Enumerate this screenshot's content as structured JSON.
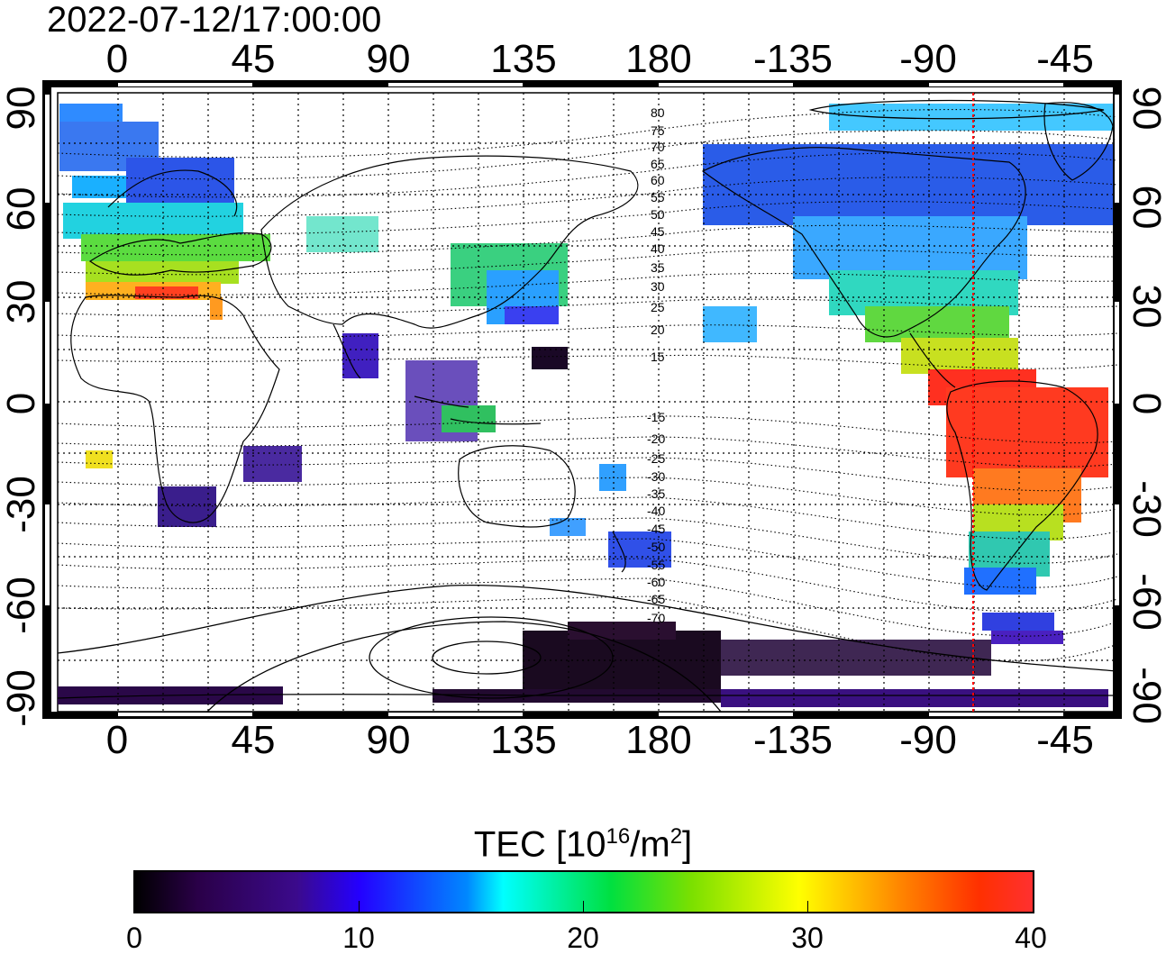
{
  "title": "2022-07-12/17:00:00",
  "axes": {
    "top_lon_labels": [
      "0",
      "45",
      "90",
      "135",
      "180",
      "-135",
      "-90",
      "-45"
    ],
    "bottom_lon_labels": [
      "0",
      "45",
      "90",
      "135",
      "180",
      "-135",
      "-90",
      "-45"
    ],
    "left_lat_labels": [
      "90",
      "60",
      "30",
      "0",
      "-30",
      "-60",
      "-90"
    ],
    "right_lat_labels": [
      "90",
      "60",
      "30",
      "0",
      "-30",
      "-60",
      "-90"
    ]
  },
  "contour_labels": [
    "80",
    "75",
    "70",
    "65",
    "60",
    "55",
    "50",
    "45",
    "40",
    "35",
    "30",
    "25",
    "20",
    "15",
    "-15",
    "-20",
    "-25",
    "-30",
    "-35",
    "-40",
    "-45",
    "-50",
    "-55",
    "-60",
    "-65",
    "-70"
  ],
  "colorbar": {
    "title_main": "TEC  [10",
    "title_exp1": "16",
    "title_mid": "/m",
    "title_exp2": "2",
    "title_end": "]",
    "ticks": [
      "0",
      "10",
      "20",
      "30",
      "40"
    ],
    "min": 0,
    "max": 40
  },
  "terminator_longitude": -75,
  "colors": {
    "frame": "#000000",
    "grid": "#000000",
    "terminator": "#ff0000"
  }
}
